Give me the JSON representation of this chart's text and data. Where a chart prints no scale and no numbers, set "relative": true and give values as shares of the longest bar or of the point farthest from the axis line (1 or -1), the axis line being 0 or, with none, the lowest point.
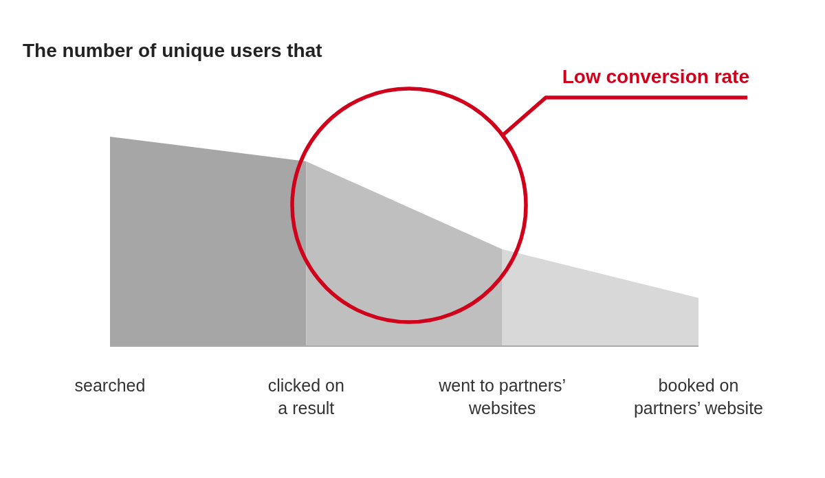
{
  "chart_data": {
    "type": "area",
    "title": "The number of unique users that",
    "categories": [
      "searched",
      "clicked on\na result",
      "went to partners’\nwebsites",
      "booked on\npartners’ website"
    ],
    "relative": true,
    "series": [
      {
        "color": "#a6a6a6",
        "values": [
          1,
          0.882,
          null,
          null
        ]
      },
      {
        "color": "#bfbfbf",
        "values": [
          null,
          0.882,
          0.462,
          null
        ]
      },
      {
        "color": "#d9d8d9",
        "values": [
          null,
          null,
          0.462,
          0.23
        ]
      }
    ],
    "annotations": [
      "Low conversion rate"
    ]
  }
}
